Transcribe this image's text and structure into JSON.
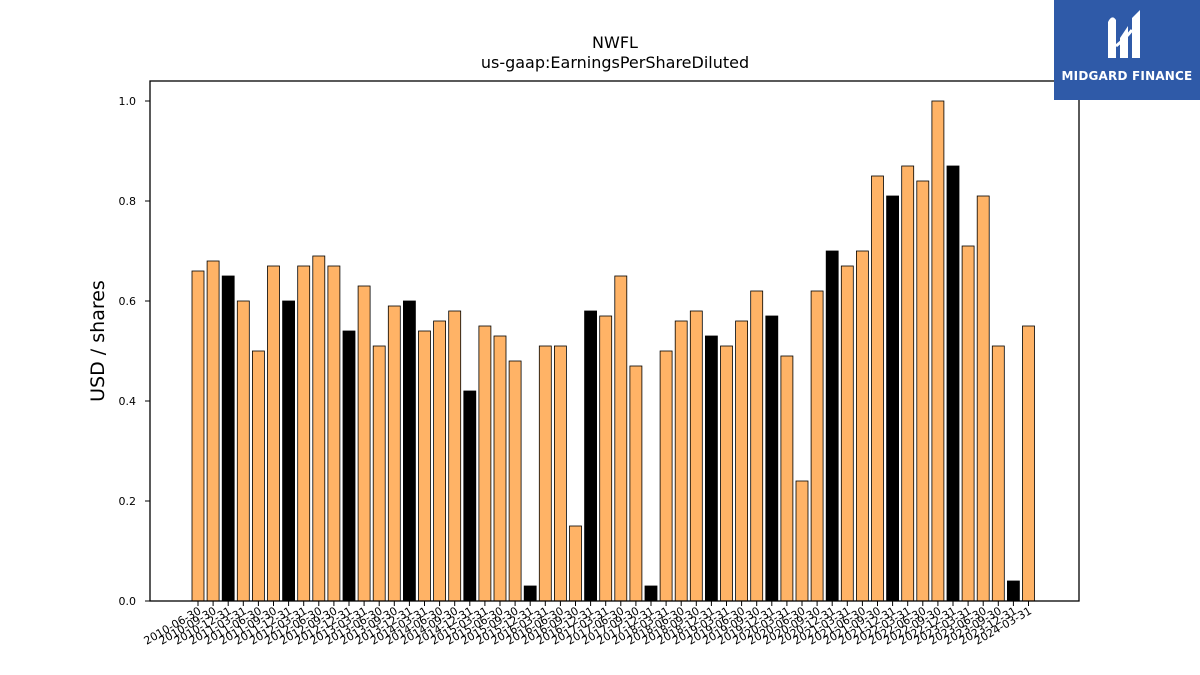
{
  "chart_data": {
    "type": "bar",
    "title": "NWFL",
    "subtitle": "us-gaap:EarningsPerShareDiluted",
    "xlabel": "",
    "ylabel": "USD / shares",
    "ylim": [
      0.0,
      1.04
    ],
    "yticks": [
      "0.0",
      "0.2",
      "0.4",
      "0.6",
      "0.8",
      "1.0"
    ],
    "ytick_values": [
      0.0,
      0.2,
      0.4,
      0.6,
      0.8,
      1.0
    ],
    "grid": false,
    "colors": {
      "quarter": "#ffb366",
      "annual": "#000000",
      "edge": "#000000"
    },
    "categories": [
      "2010-06-30",
      "2010-09-30",
      "2010-12-31",
      "2011-03-31",
      "2011-06-30",
      "2011-09-30",
      "2011-12-31",
      "2012-03-31",
      "2012-06-30",
      "2012-09-30",
      "2012-12-31",
      "2013-03-31",
      "2013-06-30",
      "2013-09-30",
      "2013-12-31",
      "2014-03-31",
      "2014-06-30",
      "2014-09-30",
      "2014-12-31",
      "2015-03-31",
      "2015-06-30",
      "2015-09-30",
      "2015-12-31",
      "2016-03-31",
      "2016-06-30",
      "2016-09-30",
      "2016-12-31",
      "2017-03-31",
      "2017-06-30",
      "2017-09-30",
      "2017-12-31",
      "2018-03-31",
      "2018-06-30",
      "2018-09-30",
      "2018-12-31",
      "2019-03-31",
      "2019-06-30",
      "2019-09-30",
      "2019-12-31",
      "2020-03-31",
      "2020-06-30",
      "2020-09-30",
      "2020-12-31",
      "2021-03-31",
      "2021-06-30",
      "2021-09-30",
      "2021-12-31",
      "2022-03-31",
      "2022-06-30",
      "2022-09-30",
      "2022-12-31",
      "2023-03-31",
      "2023-06-30",
      "2023-09-30",
      "2023-12-31",
      "2024-03-31"
    ],
    "values": [
      0.66,
      0.68,
      0.65,
      0.6,
      0.5,
      0.67,
      0.6,
      0.67,
      0.69,
      0.67,
      0.54,
      0.63,
      0.51,
      0.59,
      0.6,
      0.54,
      0.56,
      0.58,
      0.42,
      0.55,
      0.53,
      0.48,
      0.03,
      0.51,
      0.51,
      0.15,
      0.58,
      0.57,
      0.65,
      0.47,
      0.03,
      0.5,
      0.56,
      0.58,
      0.53,
      0.51,
      0.56,
      0.62,
      0.57,
      0.49,
      0.24,
      0.62,
      0.7,
      0.67,
      0.7,
      0.85,
      0.81,
      0.87,
      0.84,
      1.0,
      0.87,
      0.71,
      0.81,
      0.51,
      0.04,
      0.55
    ],
    "highlight": [
      false,
      false,
      true,
      false,
      false,
      false,
      true,
      false,
      false,
      false,
      true,
      false,
      false,
      false,
      true,
      false,
      false,
      false,
      true,
      false,
      false,
      false,
      true,
      false,
      false,
      false,
      true,
      false,
      false,
      false,
      true,
      false,
      false,
      false,
      true,
      false,
      false,
      false,
      true,
      false,
      false,
      false,
      true,
      false,
      false,
      false,
      true,
      false,
      false,
      false,
      true,
      false,
      false,
      false,
      true,
      false
    ]
  },
  "logo": {
    "text": "MIDGARD FINANCE",
    "background": "#2f5aa8"
  }
}
